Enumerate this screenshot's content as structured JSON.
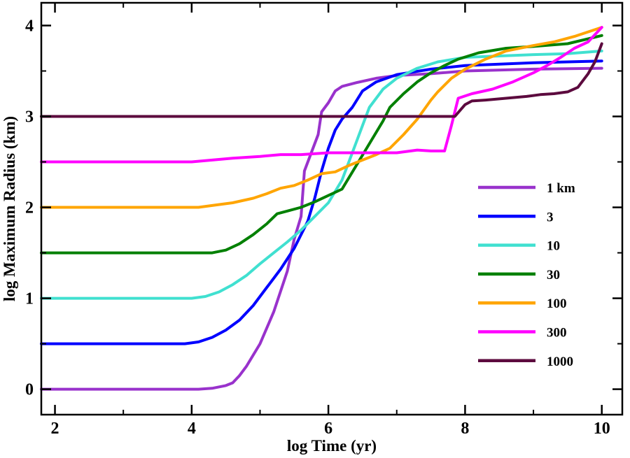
{
  "chart_data": {
    "type": "line",
    "title": "",
    "xlabel": "log Time (yr)",
    "ylabel": "log Maximum Radius (km)",
    "xlim": [
      1.8,
      10.3
    ],
    "ylim": [
      -0.28,
      4.25
    ],
    "xticks": [
      2,
      4,
      6,
      8,
      10
    ],
    "xtick_labels": [
      "2",
      "4",
      "6",
      "8",
      "10"
    ],
    "yticks": [
      0,
      1,
      2,
      3,
      4
    ],
    "ytick_labels": [
      "0",
      "1",
      "2",
      "3",
      "4"
    ],
    "grid": false,
    "legend_position": "right",
    "series": [
      {
        "name": "1 km",
        "color": "#9932CC",
        "points": [
          [
            1.8,
            0
          ],
          [
            4.1,
            0
          ],
          [
            4.3,
            0.01
          ],
          [
            4.5,
            0.04
          ],
          [
            4.6,
            0.07
          ],
          [
            4.7,
            0.15
          ],
          [
            4.8,
            0.25
          ],
          [
            5.0,
            0.5
          ],
          [
            5.2,
            0.85
          ],
          [
            5.4,
            1.3
          ],
          [
            5.5,
            1.65
          ],
          [
            5.6,
            1.9
          ],
          [
            5.65,
            2.4
          ],
          [
            5.75,
            2.6
          ],
          [
            5.85,
            2.8
          ],
          [
            5.9,
            3.05
          ],
          [
            6.0,
            3.15
          ],
          [
            6.1,
            3.28
          ],
          [
            6.2,
            3.33
          ],
          [
            6.4,
            3.37
          ],
          [
            6.7,
            3.42
          ],
          [
            7.0,
            3.45
          ],
          [
            7.5,
            3.47
          ],
          [
            8.0,
            3.5
          ],
          [
            9.0,
            3.52
          ],
          [
            10.0,
            3.53
          ]
        ]
      },
      {
        "name": "3",
        "color": "#0000FF",
        "points": [
          [
            1.8,
            0.5
          ],
          [
            3.9,
            0.5
          ],
          [
            4.1,
            0.52
          ],
          [
            4.3,
            0.57
          ],
          [
            4.5,
            0.65
          ],
          [
            4.7,
            0.76
          ],
          [
            4.9,
            0.92
          ],
          [
            5.1,
            1.12
          ],
          [
            5.3,
            1.32
          ],
          [
            5.5,
            1.55
          ],
          [
            5.7,
            1.85
          ],
          [
            5.8,
            2.1
          ],
          [
            5.9,
            2.4
          ],
          [
            6.0,
            2.65
          ],
          [
            6.1,
            2.85
          ],
          [
            6.2,
            2.97
          ],
          [
            6.35,
            3.1
          ],
          [
            6.5,
            3.28
          ],
          [
            6.7,
            3.38
          ],
          [
            7.0,
            3.46
          ],
          [
            7.5,
            3.52
          ],
          [
            8.0,
            3.56
          ],
          [
            9.0,
            3.59
          ],
          [
            10.0,
            3.61
          ]
        ]
      },
      {
        "name": "10",
        "color": "#40E0D0",
        "points": [
          [
            1.8,
            1
          ],
          [
            4.0,
            1
          ],
          [
            4.2,
            1.02
          ],
          [
            4.4,
            1.07
          ],
          [
            4.6,
            1.15
          ],
          [
            4.8,
            1.25
          ],
          [
            5.0,
            1.38
          ],
          [
            5.2,
            1.5
          ],
          [
            5.4,
            1.62
          ],
          [
            5.6,
            1.75
          ],
          [
            5.8,
            1.9
          ],
          [
            6.0,
            2.05
          ],
          [
            6.2,
            2.3
          ],
          [
            6.35,
            2.6
          ],
          [
            6.5,
            2.9
          ],
          [
            6.6,
            3.1
          ],
          [
            6.8,
            3.3
          ],
          [
            7.0,
            3.42
          ],
          [
            7.3,
            3.53
          ],
          [
            7.6,
            3.6
          ],
          [
            8.0,
            3.65
          ],
          [
            9.0,
            3.68
          ],
          [
            9.5,
            3.69
          ],
          [
            10.0,
            3.72
          ]
        ]
      },
      {
        "name": "30",
        "color": "#008000",
        "points": [
          [
            1.8,
            1.5
          ],
          [
            4.3,
            1.5
          ],
          [
            4.5,
            1.53
          ],
          [
            4.7,
            1.6
          ],
          [
            4.9,
            1.7
          ],
          [
            5.1,
            1.82
          ],
          [
            5.25,
            1.93
          ],
          [
            5.4,
            1.96
          ],
          [
            5.6,
            2.0
          ],
          [
            5.8,
            2.06
          ],
          [
            6.0,
            2.13
          ],
          [
            6.2,
            2.2
          ],
          [
            6.4,
            2.45
          ],
          [
            6.6,
            2.7
          ],
          [
            6.8,
            2.95
          ],
          [
            6.9,
            3.1
          ],
          [
            7.1,
            3.25
          ],
          [
            7.3,
            3.38
          ],
          [
            7.5,
            3.48
          ],
          [
            7.7,
            3.56
          ],
          [
            7.9,
            3.63
          ],
          [
            8.2,
            3.7
          ],
          [
            8.6,
            3.75
          ],
          [
            9.0,
            3.77
          ],
          [
            9.5,
            3.8
          ],
          [
            10.0,
            3.89
          ]
        ]
      },
      {
        "name": "100",
        "color": "#FFA500",
        "points": [
          [
            1.8,
            2
          ],
          [
            4.1,
            2
          ],
          [
            4.3,
            2.02
          ],
          [
            4.6,
            2.05
          ],
          [
            4.9,
            2.1
          ],
          [
            5.1,
            2.15
          ],
          [
            5.3,
            2.21
          ],
          [
            5.5,
            2.24
          ],
          [
            5.7,
            2.3
          ],
          [
            5.9,
            2.37
          ],
          [
            6.1,
            2.39
          ],
          [
            6.3,
            2.46
          ],
          [
            6.5,
            2.52
          ],
          [
            6.7,
            2.58
          ],
          [
            6.9,
            2.65
          ],
          [
            7.1,
            2.8
          ],
          [
            7.3,
            2.97
          ],
          [
            7.5,
            3.18
          ],
          [
            7.6,
            3.27
          ],
          [
            7.8,
            3.42
          ],
          [
            8.0,
            3.52
          ],
          [
            8.3,
            3.63
          ],
          [
            8.6,
            3.72
          ],
          [
            9.0,
            3.78
          ],
          [
            9.3,
            3.82
          ],
          [
            9.6,
            3.88
          ],
          [
            10.0,
            3.98
          ]
        ]
      },
      {
        "name": "300",
        "color": "#FF00FF",
        "points": [
          [
            1.8,
            2.5
          ],
          [
            4.0,
            2.5
          ],
          [
            4.3,
            2.52
          ],
          [
            4.6,
            2.54
          ],
          [
            5.0,
            2.56
          ],
          [
            5.3,
            2.58
          ],
          [
            5.6,
            2.58
          ],
          [
            6.0,
            2.6
          ],
          [
            6.5,
            2.6
          ],
          [
            7.0,
            2.6
          ],
          [
            7.3,
            2.63
          ],
          [
            7.5,
            2.62
          ],
          [
            7.7,
            2.62
          ],
          [
            7.8,
            2.9
          ],
          [
            7.9,
            3.2
          ],
          [
            8.1,
            3.25
          ],
          [
            8.4,
            3.3
          ],
          [
            8.7,
            3.38
          ],
          [
            9.0,
            3.48
          ],
          [
            9.2,
            3.56
          ],
          [
            9.4,
            3.65
          ],
          [
            9.6,
            3.75
          ],
          [
            9.8,
            3.82
          ],
          [
            10.0,
            3.98
          ]
        ]
      },
      {
        "name": "1000",
        "color": "#5C0A3E",
        "points": [
          [
            1.8,
            3
          ],
          [
            7.85,
            3
          ],
          [
            8.0,
            3.13
          ],
          [
            8.1,
            3.17
          ],
          [
            8.3,
            3.18
          ],
          [
            8.6,
            3.2
          ],
          [
            8.9,
            3.22
          ],
          [
            9.1,
            3.24
          ],
          [
            9.3,
            3.25
          ],
          [
            9.5,
            3.27
          ],
          [
            9.65,
            3.32
          ],
          [
            9.8,
            3.47
          ],
          [
            9.9,
            3.6
          ],
          [
            10.0,
            3.8
          ]
        ]
      }
    ]
  }
}
